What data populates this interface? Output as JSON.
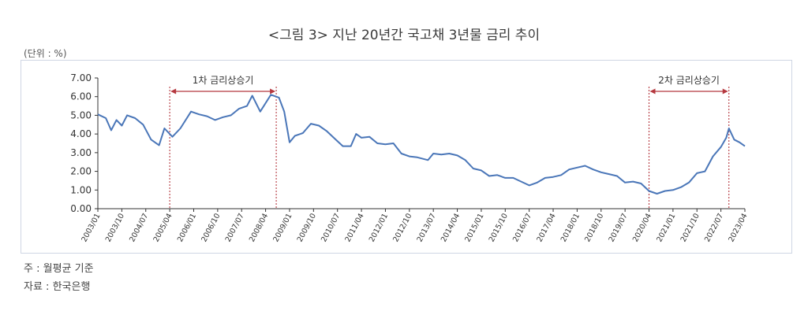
{
  "title": "<그림 3> 지난 20년간 국고채 3년물 금리 추이",
  "unit_label": "(단위 : %)",
  "notes": [
    "주 : 월평균 기준",
    "자료 : 한국은행"
  ],
  "chart_data": {
    "type": "line",
    "series": [
      {
        "color": "#4a76b8",
        "points": [
          [
            "2003/01",
            5.05
          ],
          [
            "2003/04",
            4.85
          ],
          [
            "2003/06",
            4.2
          ],
          [
            "2003/08",
            4.75
          ],
          [
            "2003/10",
            4.45
          ],
          [
            "2003/12",
            5.0
          ],
          [
            "2004/03",
            4.85
          ],
          [
            "2004/06",
            4.5
          ],
          [
            "2004/09",
            3.7
          ],
          [
            "2004/12",
            3.4
          ],
          [
            "2005/02",
            4.3
          ],
          [
            "2005/05",
            3.85
          ],
          [
            "2005/08",
            4.3
          ],
          [
            "2005/12",
            5.2
          ],
          [
            "2006/03",
            5.05
          ],
          [
            "2006/06",
            4.95
          ],
          [
            "2006/09",
            4.75
          ],
          [
            "2006/12",
            4.9
          ],
          [
            "2007/03",
            5.0
          ],
          [
            "2007/06",
            5.35
          ],
          [
            "2007/09",
            5.5
          ],
          [
            "2007/11",
            6.05
          ],
          [
            "2008/02",
            5.2
          ],
          [
            "2008/06",
            6.1
          ],
          [
            "2008/09",
            5.95
          ],
          [
            "2008/11",
            5.2
          ],
          [
            "2009/01",
            3.55
          ],
          [
            "2009/03",
            3.9
          ],
          [
            "2009/06",
            4.05
          ],
          [
            "2009/09",
            4.55
          ],
          [
            "2009/12",
            4.45
          ],
          [
            "2010/03",
            4.15
          ],
          [
            "2010/06",
            3.75
          ],
          [
            "2010/09",
            3.35
          ],
          [
            "2010/12",
            3.35
          ],
          [
            "2011/02",
            4.0
          ],
          [
            "2011/04",
            3.8
          ],
          [
            "2011/07",
            3.85
          ],
          [
            "2011/10",
            3.5
          ],
          [
            "2012/01",
            3.45
          ],
          [
            "2012/04",
            3.5
          ],
          [
            "2012/07",
            2.95
          ],
          [
            "2012/10",
            2.8
          ],
          [
            "2013/01",
            2.75
          ],
          [
            "2013/05",
            2.6
          ],
          [
            "2013/07",
            2.95
          ],
          [
            "2013/10",
            2.9
          ],
          [
            "2014/01",
            2.95
          ],
          [
            "2014/04",
            2.85
          ],
          [
            "2014/07",
            2.6
          ],
          [
            "2014/10",
            2.15
          ],
          [
            "2015/01",
            2.05
          ],
          [
            "2015/04",
            1.75
          ],
          [
            "2015/07",
            1.8
          ],
          [
            "2015/10",
            1.65
          ],
          [
            "2016/01",
            1.65
          ],
          [
            "2016/04",
            1.45
          ],
          [
            "2016/07",
            1.25
          ],
          [
            "2016/10",
            1.4
          ],
          [
            "2017/01",
            1.65
          ],
          [
            "2017/04",
            1.7
          ],
          [
            "2017/07",
            1.8
          ],
          [
            "2017/10",
            2.1
          ],
          [
            "2018/01",
            2.2
          ],
          [
            "2018/04",
            2.3
          ],
          [
            "2018/07",
            2.1
          ],
          [
            "2018/10",
            1.95
          ],
          [
            "2019/01",
            1.85
          ],
          [
            "2019/04",
            1.75
          ],
          [
            "2019/07",
            1.4
          ],
          [
            "2019/10",
            1.45
          ],
          [
            "2020/01",
            1.35
          ],
          [
            "2020/04",
            0.95
          ],
          [
            "2020/07",
            0.8
          ],
          [
            "2020/10",
            0.95
          ],
          [
            "2021/01",
            1.0
          ],
          [
            "2021/04",
            1.15
          ],
          [
            "2021/07",
            1.4
          ],
          [
            "2021/10",
            1.9
          ],
          [
            "2022/01",
            2.0
          ],
          [
            "2022/04",
            2.8
          ],
          [
            "2022/07",
            3.3
          ],
          [
            "2022/09",
            3.8
          ],
          [
            "2022/10",
            4.3
          ],
          [
            "2022/12",
            3.7
          ],
          [
            "2023/02",
            3.55
          ],
          [
            "2023/04",
            3.35
          ]
        ]
      }
    ],
    "x_ticks": [
      "2003/01",
      "2003/10",
      "2004/07",
      "2005/04",
      "2006/01",
      "2006/10",
      "2007/07",
      "2008/04",
      "2009/01",
      "2009/10",
      "2010/07",
      "2011/04",
      "2012/01",
      "2012/10",
      "2013/07",
      "2014/04",
      "2015/01",
      "2015/10",
      "2016/07",
      "2017/04",
      "2018/01",
      "2018/10",
      "2019/07",
      "2020/04",
      "2021/01",
      "2021/10",
      "2022/07",
      "2023/04"
    ],
    "y_ticks": [
      "7.00",
      "6.00",
      "5.00",
      "4.00",
      "3.00",
      "2.00",
      "1.00",
      "0.00"
    ],
    "ylim": [
      0,
      7
    ],
    "annotations": [
      {
        "label": "1차 금리상승기",
        "start": "2005/04",
        "end": "2008/08"
      },
      {
        "label": "2차 금리상승기",
        "start": "2020/04",
        "end": "2022/10"
      }
    ]
  }
}
